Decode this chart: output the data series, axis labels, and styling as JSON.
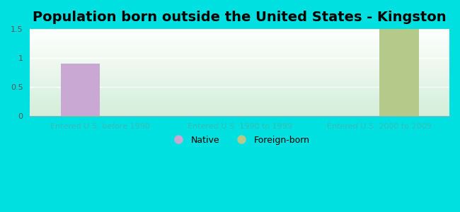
{
  "title": "Population born outside the United States - Kingston",
  "categories": [
    "Entered U.S. before 1990",
    "Entered U.S. 1990 to 1999",
    "Entered U.S. 2000 to 2009"
  ],
  "native_values": [
    0.9,
    0.0,
    0.0
  ],
  "foreign_values": [
    0.0,
    0.0,
    1.5
  ],
  "native_color": "#c9a8d4",
  "foreign_color": "#b5c98a",
  "background_color": "#00e0e0",
  "ylim": [
    0,
    1.5
  ],
  "yticks": [
    0,
    0.5,
    1,
    1.5
  ],
  "bar_width": 0.28,
  "legend_native": "Native",
  "legend_foreign": "Foreign-born",
  "title_fontsize": 14,
  "tick_fontsize": 8,
  "xtick_color": "#33bbbb",
  "ytick_color": "#555555",
  "legend_fontsize": 9,
  "grid_color": "#ffffff",
  "bg_top_color": "#eaf5ea",
  "bg_bottom_color": "#f5fff5"
}
